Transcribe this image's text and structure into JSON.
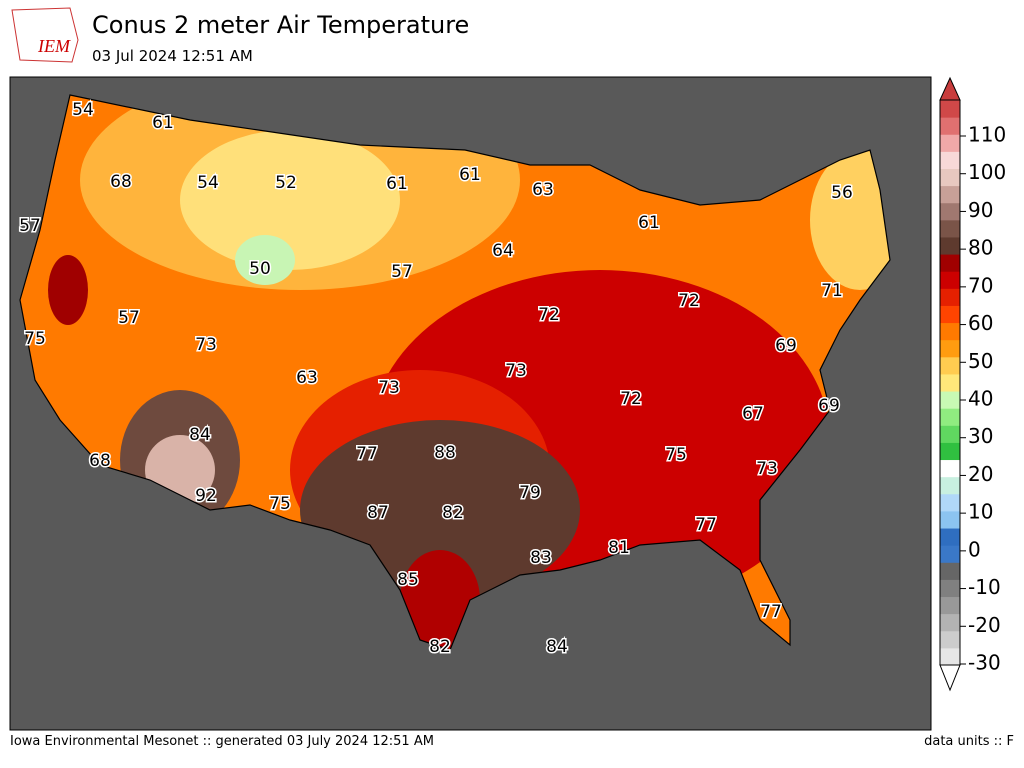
{
  "header": {
    "logo": "IEM",
    "title": "Conus 2 meter Air Temperature",
    "subtitle": "03 Jul 2024 12:51 AM"
  },
  "footer": {
    "left": "Iowa Environmental Mesonet :: generated 03 July 2024 12:51 AM",
    "right": "data units :: F"
  },
  "colorbar": {
    "ticks": [
      -30,
      -20,
      -10,
      0,
      10,
      20,
      30,
      40,
      50,
      60,
      70,
      80,
      90,
      100,
      110
    ]
  },
  "station_values": [
    54,
    61,
    68,
    54,
    52,
    61,
    61,
    63,
    56,
    57,
    61,
    50,
    64,
    57,
    71,
    72,
    57,
    72,
    75,
    73,
    69,
    63,
    73,
    73,
    72,
    69,
    67,
    84,
    88,
    77,
    75,
    68,
    73,
    79,
    92,
    75,
    87,
    82,
    77,
    81,
    83,
    85,
    77,
    82,
    84
  ]
}
